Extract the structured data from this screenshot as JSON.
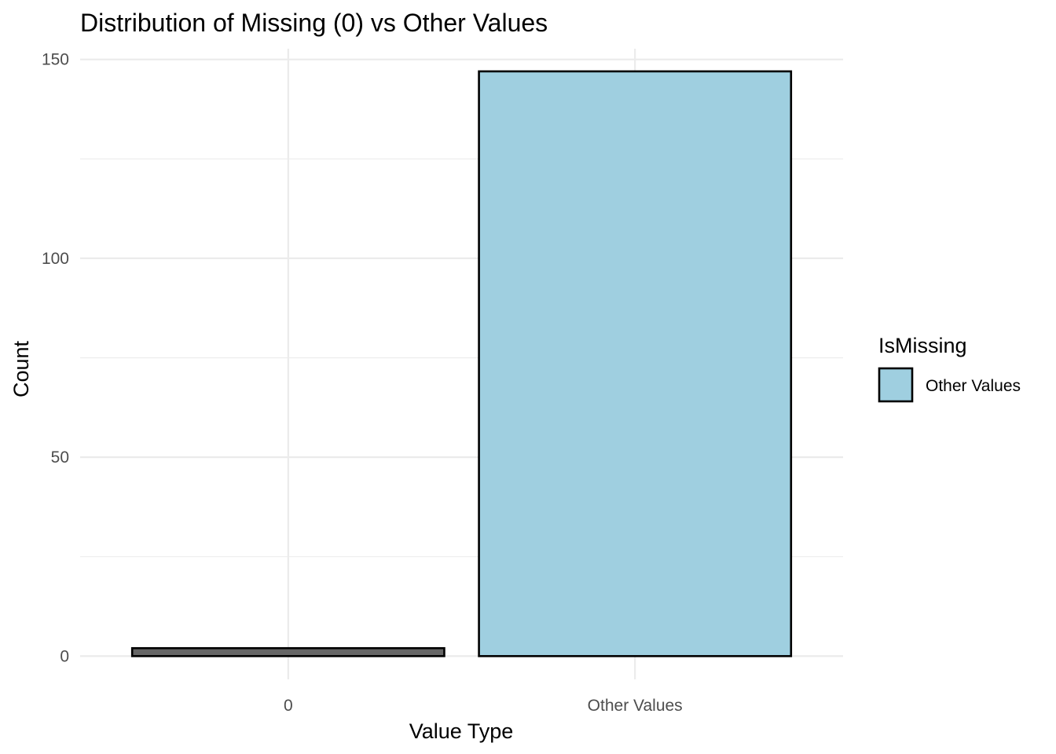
{
  "chart_data": {
    "type": "bar",
    "title": "Distribution of Missing (0) vs Other Values",
    "xlabel": "Value Type",
    "ylabel": "Count",
    "categories": [
      "0",
      "Other Values"
    ],
    "values": [
      2,
      147
    ],
    "bar_colors": [
      "#666666",
      "#9fcfe0"
    ],
    "ylim": [
      -5.85,
      152.7
    ],
    "yticks": [
      0,
      50,
      100,
      150
    ],
    "ytick_labels": [
      "0",
      "50",
      "100",
      "150"
    ],
    "grid": true,
    "legend": {
      "title": "IsMissing",
      "placement": "right",
      "entries": [
        {
          "label": "Other Values",
          "color": "#9fcfe0"
        }
      ]
    }
  }
}
